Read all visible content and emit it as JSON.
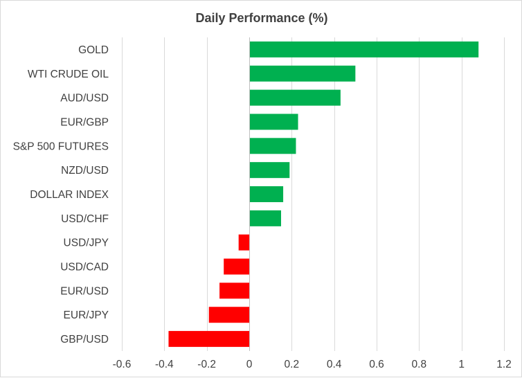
{
  "chart_data": {
    "type": "bar",
    "orientation": "horizontal",
    "title": "Daily Performance (%)",
    "xlabel": "",
    "ylabel": "",
    "xlim": [
      -0.6,
      1.2
    ],
    "xticks": [
      -0.6,
      -0.4,
      -0.2,
      0,
      0.2,
      0.4,
      0.6,
      0.8,
      1,
      1.2
    ],
    "xtick_labels": [
      "-0.6",
      "-0.4",
      "-0.2",
      "0",
      "0.2",
      "0.4",
      "0.6",
      "0.8",
      "1",
      "1.2"
    ],
    "grid": true,
    "legend": "none",
    "categories": [
      "GOLD",
      "WTI CRUDE OIL",
      "AUD/USD",
      "EUR/GBP",
      "S&P 500 FUTURES",
      "NZD/USD",
      "DOLLAR INDEX",
      "USD/CHF",
      "USD/JPY",
      "USD/CAD",
      "EUR/USD",
      "EUR/JPY",
      "GBP/USD"
    ],
    "values": [
      1.08,
      0.5,
      0.43,
      0.23,
      0.22,
      0.19,
      0.16,
      0.15,
      -0.05,
      -0.12,
      -0.14,
      -0.19,
      -0.38
    ],
    "colors": {
      "positive": "#00b050",
      "negative": "#ff0000",
      "grid": "#d9d9d9",
      "text": "#404040"
    }
  }
}
